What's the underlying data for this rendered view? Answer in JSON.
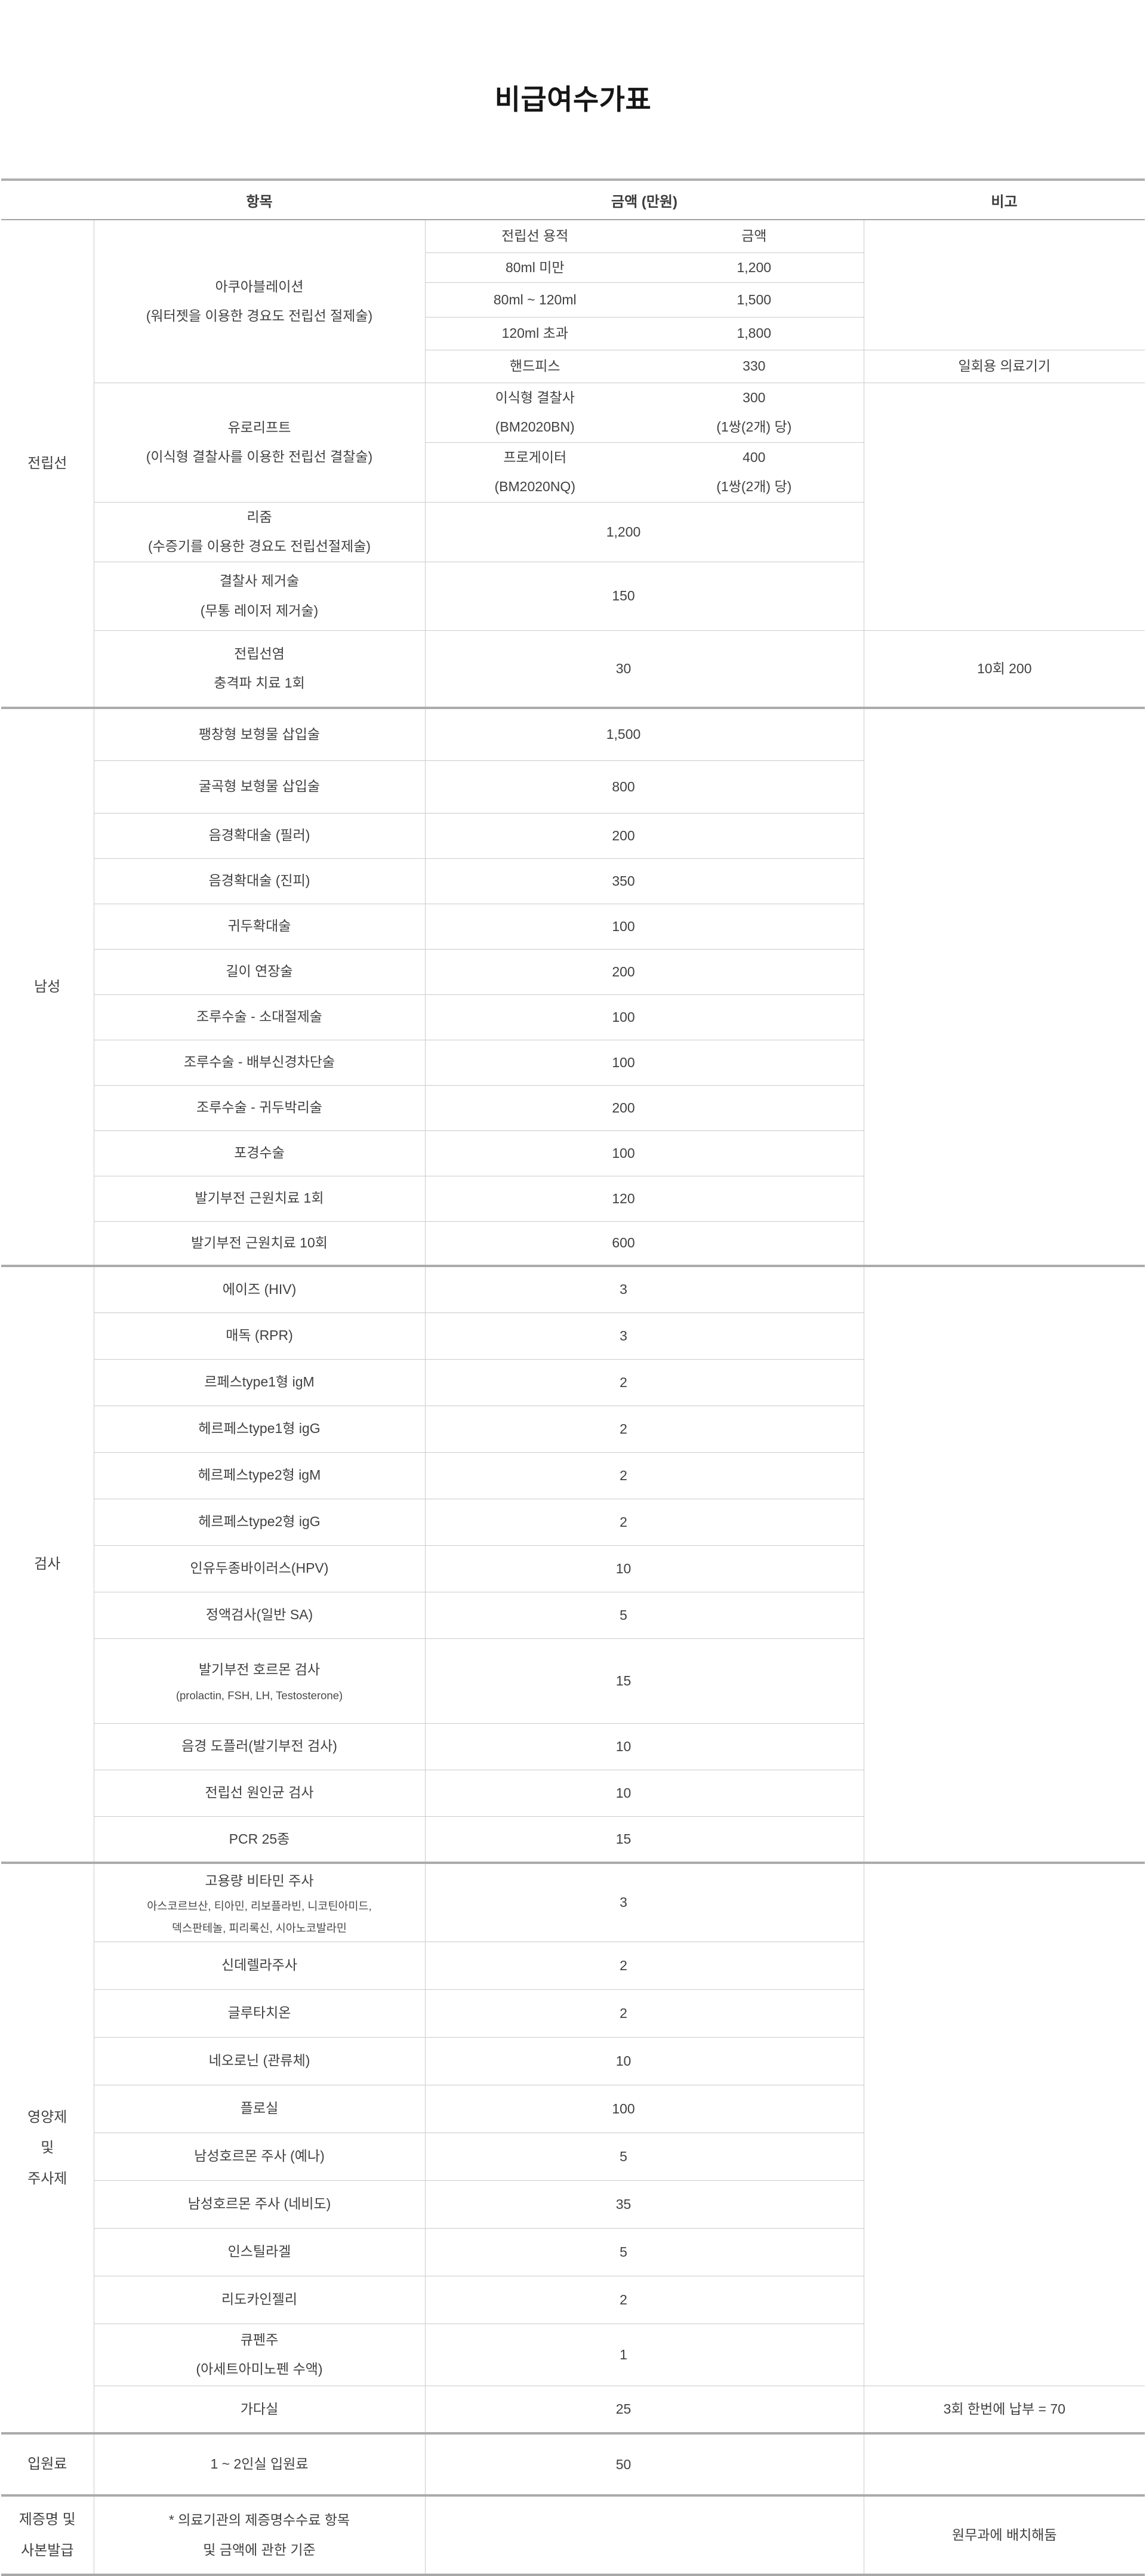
{
  "page": {
    "title": "비급여수가표"
  },
  "theme": {
    "background": "#ffffff",
    "text": "#414141",
    "title_text": "#161616",
    "border_thin": "#cbcbcb",
    "border_thick": "#ababab",
    "header_rule": "#a2a2a2"
  },
  "table": {
    "headers": {
      "group": "",
      "item": "항목",
      "amount": "금액 (만원)",
      "note": "비고"
    },
    "sections": [
      {
        "label_lines": [
          "전립선"
        ],
        "rows": [
          {
            "h": 55,
            "item": {
              "lines": [
                "아쿠아블레이션",
                "(워터젯을 이용한 경요도 전립선 절제술)"
              ],
              "rowspan": 5
            },
            "amt": {
              "kind": "pair",
              "left": [
                "전립선 용적"
              ],
              "right": [
                "금액"
              ]
            },
            "noteSpan": 4
          },
          {
            "h": 50,
            "amt": {
              "kind": "pair",
              "left": [
                "80ml 미만"
              ],
              "right": [
                "1,200"
              ]
            }
          },
          {
            "h": 58,
            "amt": {
              "kind": "pair",
              "left": [
                "80ml ~ 120ml"
              ],
              "right": [
                "1,500"
              ]
            }
          },
          {
            "h": 55,
            "amt": {
              "kind": "pair",
              "left": [
                "120ml 초과"
              ],
              "right": [
                "1,800"
              ]
            }
          },
          {
            "h": 55,
            "amt": {
              "kind": "pair",
              "left": [
                "핸드피스"
              ],
              "right": [
                "330"
              ]
            },
            "note": [
              "일회용 의료기기"
            ]
          },
          {
            "h": 85,
            "item": {
              "lines": [
                "유로리프트",
                "(이식형 결찰사를 이용한 전립선 결찰술)"
              ],
              "rowspan": 2
            },
            "amt": {
              "kind": "pair",
              "left": [
                "이식형 결찰사",
                "(BM2020BN)"
              ],
              "right": [
                "300",
                "(1쌍(2개) 당)"
              ]
            },
            "noteSpan": 4,
            "noteBt": true
          },
          {
            "h": 92,
            "amt": {
              "kind": "pair",
              "left": [
                "프로게이터",
                "(BM2020NQ)"
              ],
              "right": [
                "400",
                "(1쌍(2개) 당)"
              ]
            }
          },
          {
            "h": 85,
            "item": {
              "lines": [
                "리줌",
                "(수증기를 이용한 경요도 전립선절제술)"
              ]
            },
            "amt": {
              "kind": "merged",
              "value": "1,200"
            }
          },
          {
            "h": 115,
            "item": {
              "lines": [
                "결찰사 제거술",
                "(무통 레이저 제거술)"
              ]
            },
            "amt": {
              "kind": "merged",
              "value": "150"
            }
          },
          {
            "h": 130,
            "item": {
              "lines": [
                "전립선염",
                "충격파 치료 1회"
              ]
            },
            "amt": {
              "kind": "merged",
              "value": "30"
            },
            "note": [
              "10회 200"
            ]
          }
        ]
      },
      {
        "label_lines": [
          "남성"
        ],
        "rows": [
          {
            "h": 88,
            "item": {
              "lines": [
                "팽창형 보형물 삽입술"
              ]
            },
            "amt": {
              "kind": "merged",
              "value": "1,500"
            },
            "noteSpan": 12
          },
          {
            "h": 88,
            "item": {
              "lines": [
                "굴곡형 보형물 삽입술"
              ]
            },
            "amt": {
              "kind": "merged",
              "value": "800"
            }
          },
          {
            "h": 76,
            "item": {
              "lines": [
                "음경확대술 (필러)"
              ]
            },
            "amt": {
              "kind": "merged",
              "value": "200"
            }
          },
          {
            "h": 76,
            "item": {
              "lines": [
                "음경확대술 (진피)"
              ]
            },
            "amt": {
              "kind": "merged",
              "value": "350"
            }
          },
          {
            "h": 76,
            "item": {
              "lines": [
                "귀두확대술"
              ]
            },
            "amt": {
              "kind": "merged",
              "value": "100"
            }
          },
          {
            "h": 76,
            "item": {
              "lines": [
                "길이 연장술"
              ]
            },
            "amt": {
              "kind": "merged",
              "value": "200"
            }
          },
          {
            "h": 76,
            "item": {
              "lines": [
                "조루수술 - 소대절제술"
              ]
            },
            "amt": {
              "kind": "merged",
              "value": "100"
            }
          },
          {
            "h": 76,
            "item": {
              "lines": [
                "조루수술 - 배부신경차단술"
              ]
            },
            "amt": {
              "kind": "merged",
              "value": "100"
            }
          },
          {
            "h": 76,
            "item": {
              "lines": [
                "조루수술 - 귀두박리술"
              ]
            },
            "amt": {
              "kind": "merged",
              "value": "200"
            }
          },
          {
            "h": 76,
            "item": {
              "lines": [
                "포경수술"
              ]
            },
            "amt": {
              "kind": "merged",
              "value": "100"
            }
          },
          {
            "h": 76,
            "item": {
              "lines": [
                "발기부전 근원치료 1회"
              ]
            },
            "amt": {
              "kind": "merged",
              "value": "120"
            }
          },
          {
            "h": 75,
            "item": {
              "lines": [
                "발기부전 근원치료 10회"
              ]
            },
            "amt": {
              "kind": "merged",
              "value": "600"
            }
          }
        ]
      },
      {
        "label_lines": [
          "검사"
        ],
        "rows": [
          {
            "h": 78,
            "item": {
              "lines": [
                "에이즈 (HIV)"
              ]
            },
            "amt": {
              "kind": "merged",
              "value": "3"
            },
            "noteSpan": 12
          },
          {
            "h": 78,
            "item": {
              "lines": [
                "매독 (RPR)"
              ]
            },
            "amt": {
              "kind": "merged",
              "value": "3"
            }
          },
          {
            "h": 78,
            "item": {
              "lines": [
                "르페스type1형 igM"
              ]
            },
            "amt": {
              "kind": "merged",
              "value": "2"
            }
          },
          {
            "h": 78,
            "item": {
              "lines": [
                "헤르페스type1형 igG"
              ]
            },
            "amt": {
              "kind": "merged",
              "value": "2"
            }
          },
          {
            "h": 78,
            "item": {
              "lines": [
                "헤르페스type2형 igM"
              ]
            },
            "amt": {
              "kind": "merged",
              "value": "2"
            }
          },
          {
            "h": 78,
            "item": {
              "lines": [
                "헤르페스type2형 igG"
              ]
            },
            "amt": {
              "kind": "merged",
              "value": "2"
            }
          },
          {
            "h": 78,
            "item": {
              "lines": [
                "인유두종바이러스(HPV)"
              ]
            },
            "amt": {
              "kind": "merged",
              "value": "10"
            }
          },
          {
            "h": 78,
            "item": {
              "lines": [
                "정액검사(일반 SA)"
              ]
            },
            "amt": {
              "kind": "merged",
              "value": "5"
            }
          },
          {
            "h": 142,
            "item": {
              "lines": [
                "발기부전 호르몬 검사"
              ],
              "small": [
                "(prolactin, FSH, LH, Testosterone)"
              ]
            },
            "amt": {
              "kind": "merged",
              "value": "15"
            }
          },
          {
            "h": 78,
            "item": {
              "lines": [
                "음경 도플러(발기부전 검사)"
              ]
            },
            "amt": {
              "kind": "merged",
              "value": "10"
            }
          },
          {
            "h": 78,
            "item": {
              "lines": [
                "전립선 원인균 검사"
              ]
            },
            "amt": {
              "kind": "merged",
              "value": "10"
            }
          },
          {
            "h": 78,
            "item": {
              "lines": [
                "PCR 25종"
              ]
            },
            "amt": {
              "kind": "merged",
              "value": "15"
            }
          }
        ]
      },
      {
        "label_lines": [
          "영양제",
          "및",
          "주사제"
        ],
        "rows": [
          {
            "h": 132,
            "item": {
              "lines": [
                "고용량 비타민 주사"
              ],
              "small": [
                "아스코르브산, 티아민, 리보플라빈,  니코틴아미드,",
                "덱스판테놀, 피리록신, 시아노코발라민"
              ]
            },
            "amt": {
              "kind": "merged",
              "value": "3"
            },
            "noteSpan": 10
          },
          {
            "h": 80,
            "item": {
              "lines": [
                "신데렐라주사"
              ]
            },
            "amt": {
              "kind": "merged",
              "value": "2"
            }
          },
          {
            "h": 80,
            "item": {
              "lines": [
                "글루타치온"
              ]
            },
            "amt": {
              "kind": "merged",
              "value": "2"
            }
          },
          {
            "h": 80,
            "item": {
              "lines": [
                "네오로닌 (관류체)"
              ]
            },
            "amt": {
              "kind": "merged",
              "value": "10"
            }
          },
          {
            "h": 80,
            "item": {
              "lines": [
                "플로실"
              ]
            },
            "amt": {
              "kind": "merged",
              "value": "100"
            }
          },
          {
            "h": 80,
            "item": {
              "lines": [
                "남성호르몬 주사 (예나)"
              ]
            },
            "amt": {
              "kind": "merged",
              "value": "5"
            }
          },
          {
            "h": 80,
            "item": {
              "lines": [
                "남성호르몬 주사 (네비도)"
              ]
            },
            "amt": {
              "kind": "merged",
              "value": "35"
            }
          },
          {
            "h": 80,
            "item": {
              "lines": [
                "인스틸라겔"
              ]
            },
            "amt": {
              "kind": "merged",
              "value": "5"
            }
          },
          {
            "h": 80,
            "item": {
              "lines": [
                "리도카인젤리"
              ]
            },
            "amt": {
              "kind": "merged",
              "value": "2"
            }
          },
          {
            "h": 104,
            "item": {
              "lines": [
                "큐펜주",
                "(아세트아미노펜 수액)"
              ]
            },
            "amt": {
              "kind": "merged",
              "value": "1"
            }
          },
          {
            "h": 80,
            "item": {
              "lines": [
                "가다실"
              ]
            },
            "amt": {
              "kind": "merged",
              "value": "25"
            },
            "note": [
              "3회 한번에 납부 = 70"
            ]
          }
        ]
      },
      {
        "label_lines": [
          "입원료"
        ],
        "rows": [
          {
            "h": 104,
            "item": {
              "lines": [
                "1 ~ 2인실 입원료"
              ]
            },
            "amt": {
              "kind": "merged",
              "value": "50"
            },
            "noteSpan": 1
          }
        ]
      },
      {
        "label_lines": [
          "제증명 및",
          "사본발급"
        ],
        "rows": [
          {
            "h": 133,
            "item": {
              "lines": [
                "* 의료기관의 제증명수수료 항목",
                "및 금액에 관한 기준"
              ]
            },
            "amt": {
              "kind": "merged",
              "value": ""
            },
            "note": [
              "원무과에 배치해둠"
            ]
          }
        ]
      }
    ]
  }
}
